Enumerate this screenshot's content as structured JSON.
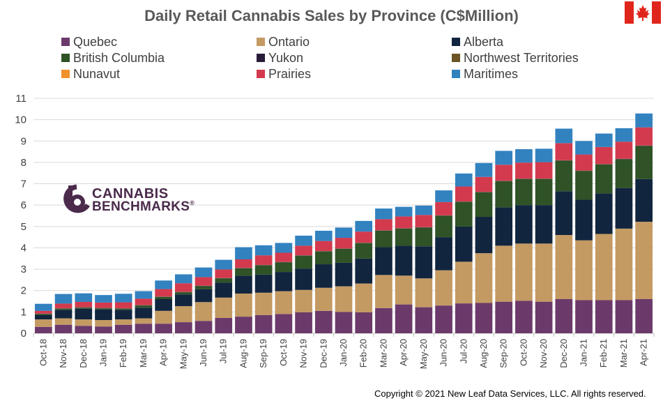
{
  "title": "Daily Retail Cannabis Sales by Province (C$Million)",
  "copyright": "Copyright © 2021 New Leaf Data Services, LLC. All rights reserved.",
  "logo": {
    "line1": "CANNABIS",
    "line2": "BENCHMARKS",
    "mark": "®"
  },
  "flag_icon": "canada-flag-icon",
  "chart_data": {
    "type": "bar",
    "stacked": true,
    "title": "Daily Retail Cannabis Sales by Province (C$Million)",
    "ylim": [
      0,
      11
    ],
    "yticks": [
      0,
      1,
      2,
      3,
      4,
      5,
      6,
      7,
      8,
      9,
      10,
      11
    ],
    "grid": true,
    "legend_position": "top",
    "categories": [
      "Oct-18",
      "Nov-18",
      "Dec-18",
      "Jan-19",
      "Feb-19",
      "Mar-19",
      "Apr-19",
      "May-19",
      "Jun-19",
      "Jul-19",
      "Aug-19",
      "Sep-19",
      "Oct-19",
      "Nov-19",
      "Dec-19",
      "Jan-20",
      "Feb-20",
      "Mar-20",
      "Apr-20",
      "May-20",
      "Jun-20",
      "Jul-20",
      "Aug-20",
      "Sep-20",
      "Oct-20",
      "Nov-20",
      "Dec-20",
      "Jan-21",
      "Feb-21",
      "Mar-21",
      "Apr-21"
    ],
    "series": [
      {
        "name": "Quebec",
        "color": "#6b3a6b",
        "values": [
          0.3,
          0.4,
          0.35,
          0.32,
          0.4,
          0.45,
          0.45,
          0.52,
          0.58,
          0.72,
          0.78,
          0.85,
          0.9,
          0.98,
          1.05,
          1.0,
          0.98,
          1.18,
          1.35,
          1.22,
          1.3,
          1.4,
          1.42,
          1.48,
          1.52,
          1.48,
          1.6,
          1.55,
          1.55,
          1.55,
          1.6
        ]
      },
      {
        "name": "Ontario",
        "color": "#c49a63",
        "values": [
          0.35,
          0.3,
          0.3,
          0.3,
          0.25,
          0.25,
          0.6,
          0.75,
          0.88,
          0.95,
          1.08,
          1.05,
          1.07,
          1.05,
          1.08,
          1.2,
          1.35,
          1.55,
          1.35,
          1.35,
          1.65,
          1.95,
          2.33,
          2.62,
          2.68,
          2.72,
          3.0,
          2.8,
          3.1,
          3.35,
          3.62
        ]
      },
      {
        "name": "Alberta",
        "color": "#11253f",
        "values": [
          0.2,
          0.4,
          0.5,
          0.5,
          0.45,
          0.5,
          0.55,
          0.55,
          0.6,
          0.7,
          0.83,
          0.85,
          0.9,
          1.0,
          1.1,
          1.1,
          1.17,
          1.3,
          1.4,
          1.5,
          1.55,
          1.65,
          1.7,
          1.8,
          1.8,
          1.8,
          2.05,
          1.9,
          1.9,
          1.9,
          2.0
        ]
      },
      {
        "name": "British Columbia",
        "color": "#2f5226",
        "values": [
          0.05,
          0.05,
          0.05,
          0.05,
          0.05,
          0.1,
          0.1,
          0.1,
          0.15,
          0.2,
          0.35,
          0.43,
          0.45,
          0.6,
          0.6,
          0.65,
          0.72,
          0.77,
          0.8,
          0.88,
          1.0,
          1.15,
          1.15,
          1.22,
          1.22,
          1.22,
          1.43,
          1.35,
          1.35,
          1.35,
          1.55
        ]
      },
      {
        "name": "Yukon",
        "color": "#2a1d3a",
        "values": [
          0.01,
          0.01,
          0.01,
          0.01,
          0.01,
          0.01,
          0.01,
          0.01,
          0.01,
          0.01,
          0.01,
          0.01,
          0.01,
          0.01,
          0.01,
          0.01,
          0.01,
          0.01,
          0.01,
          0.01,
          0.01,
          0.01,
          0.01,
          0.01,
          0.01,
          0.01,
          0.01,
          0.01,
          0.01,
          0.01,
          0.01
        ]
      },
      {
        "name": "Northwest Territories",
        "color": "#6b5525",
        "values": [
          0.01,
          0.01,
          0.01,
          0.01,
          0.01,
          0.01,
          0.01,
          0.01,
          0.01,
          0.01,
          0.01,
          0.01,
          0.01,
          0.01,
          0.01,
          0.01,
          0.01,
          0.01,
          0.01,
          0.01,
          0.01,
          0.01,
          0.01,
          0.01,
          0.01,
          0.01,
          0.01,
          0.01,
          0.01,
          0.01,
          0.01
        ]
      },
      {
        "name": "Nunavut",
        "color": "#f0922b",
        "values": [
          0,
          0,
          0,
          0,
          0,
          0,
          0,
          0,
          0,
          0,
          0,
          0,
          0,
          0,
          0,
          0,
          0,
          0,
          0,
          0,
          0,
          0,
          0,
          0,
          0,
          0,
          0,
          0,
          0,
          0,
          0
        ]
      },
      {
        "name": "Prairies",
        "color": "#d33a4e",
        "values": [
          0.13,
          0.22,
          0.25,
          0.25,
          0.28,
          0.3,
          0.35,
          0.4,
          0.4,
          0.4,
          0.4,
          0.45,
          0.43,
          0.45,
          0.47,
          0.5,
          0.52,
          0.52,
          0.55,
          0.57,
          0.62,
          0.7,
          0.7,
          0.75,
          0.75,
          0.77,
          0.8,
          0.75,
          0.8,
          0.8,
          0.85
        ]
      },
      {
        "name": "Maritimes",
        "color": "#3282c0",
        "values": [
          0.33,
          0.45,
          0.4,
          0.35,
          0.4,
          0.35,
          0.4,
          0.42,
          0.45,
          0.45,
          0.57,
          0.47,
          0.46,
          0.47,
          0.48,
          0.48,
          0.5,
          0.5,
          0.45,
          0.44,
          0.55,
          0.61,
          0.65,
          0.65,
          0.63,
          0.63,
          0.68,
          0.63,
          0.63,
          0.63,
          0.65
        ]
      }
    ]
  }
}
